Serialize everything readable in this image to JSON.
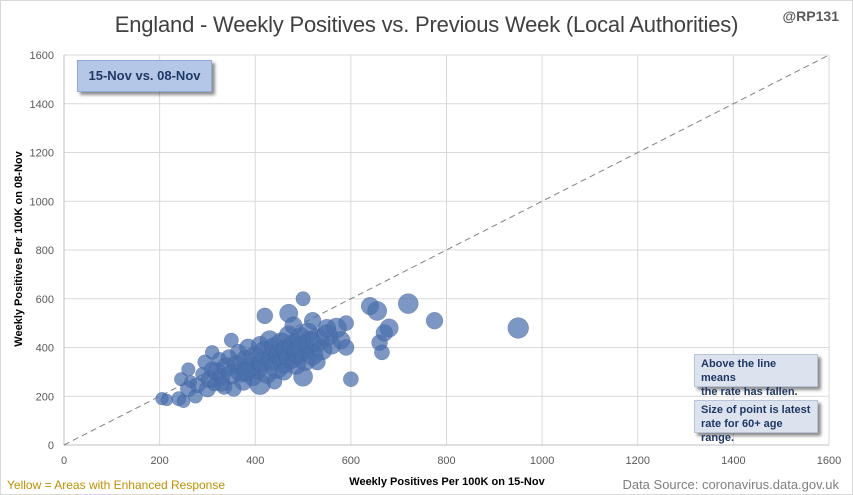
{
  "header": {
    "title": "England - Weekly Positives vs. Previous Week (Local Authorities)",
    "handle": "@RP131"
  },
  "annotations": {
    "period": "15-Nov vs. 08-Nov",
    "note_line_1": "Above the line means",
    "note_line_2": "the rate has fallen.",
    "note_size_1": "Size of point is latest",
    "note_size_2": "rate for 60+ age range."
  },
  "footer": {
    "legend_note": "Yellow = Areas with Enhanced Response",
    "source": "Data Source: coronavirus.data.gov.uk"
  },
  "colors": {
    "points": "#4a6fac",
    "reference_line": "#808080",
    "grid": "#d9d9d9"
  },
  "chart_data": {
    "type": "scatter",
    "title": "England - Weekly Positives vs. Previous Week (Local Authorities)",
    "xlabel": "Weekly Positives Per 100K on 15-Nov",
    "ylabel": "Weekly Positives Per 100K on 08-Nov",
    "xlim": [
      0,
      1600
    ],
    "ylim": [
      0,
      1600
    ],
    "xticks": [
      0,
      200,
      400,
      600,
      800,
      1000,
      1200,
      1400,
      1600
    ],
    "yticks": [
      0,
      200,
      400,
      600,
      800,
      1000,
      1200,
      1400,
      1600
    ],
    "grid": true,
    "reference_line": "y = x",
    "points": [
      {
        "x": 205,
        "y": 190,
        "s": 120
      },
      {
        "x": 215,
        "y": 185,
        "s": 100
      },
      {
        "x": 240,
        "y": 190,
        "s": 160
      },
      {
        "x": 245,
        "y": 270,
        "s": 140
      },
      {
        "x": 250,
        "y": 180,
        "s": 130
      },
      {
        "x": 260,
        "y": 230,
        "s": 200
      },
      {
        "x": 265,
        "y": 260,
        "s": 110
      },
      {
        "x": 275,
        "y": 200,
        "s": 150
      },
      {
        "x": 280,
        "y": 245,
        "s": 180
      },
      {
        "x": 290,
        "y": 290,
        "s": 160
      },
      {
        "x": 295,
        "y": 340,
        "s": 170
      },
      {
        "x": 300,
        "y": 230,
        "s": 210
      },
      {
        "x": 305,
        "y": 270,
        "s": 240
      },
      {
        "x": 310,
        "y": 310,
        "s": 190
      },
      {
        "x": 315,
        "y": 250,
        "s": 150
      },
      {
        "x": 320,
        "y": 300,
        "s": 260
      },
      {
        "x": 325,
        "y": 350,
        "s": 170
      },
      {
        "x": 330,
        "y": 280,
        "s": 220
      },
      {
        "x": 335,
        "y": 240,
        "s": 200
      },
      {
        "x": 340,
        "y": 320,
        "s": 280
      },
      {
        "x": 345,
        "y": 360,
        "s": 190
      },
      {
        "x": 350,
        "y": 290,
        "s": 300
      },
      {
        "x": 355,
        "y": 230,
        "s": 180
      },
      {
        "x": 360,
        "y": 330,
        "s": 260
      },
      {
        "x": 365,
        "y": 380,
        "s": 210
      },
      {
        "x": 370,
        "y": 300,
        "s": 320
      },
      {
        "x": 375,
        "y": 260,
        "s": 240
      },
      {
        "x": 380,
        "y": 350,
        "s": 280
      },
      {
        "x": 385,
        "y": 400,
        "s": 230
      },
      {
        "x": 390,
        "y": 320,
        "s": 300
      },
      {
        "x": 395,
        "y": 280,
        "s": 260
      },
      {
        "x": 400,
        "y": 360,
        "s": 340
      },
      {
        "x": 405,
        "y": 310,
        "s": 280
      },
      {
        "x": 410,
        "y": 410,
        "s": 240
      },
      {
        "x": 410,
        "y": 250,
        "s": 330
      },
      {
        "x": 415,
        "y": 340,
        "s": 300
      },
      {
        "x": 420,
        "y": 380,
        "s": 360
      },
      {
        "x": 425,
        "y": 290,
        "s": 260
      },
      {
        "x": 430,
        "y": 430,
        "s": 280
      },
      {
        "x": 435,
        "y": 350,
        "s": 320
      },
      {
        "x": 440,
        "y": 400,
        "s": 300
      },
      {
        "x": 445,
        "y": 320,
        "s": 380
      },
      {
        "x": 450,
        "y": 370,
        "s": 340
      },
      {
        "x": 455,
        "y": 420,
        "s": 300
      },
      {
        "x": 460,
        "y": 340,
        "s": 360
      },
      {
        "x": 465,
        "y": 390,
        "s": 320
      },
      {
        "x": 470,
        "y": 450,
        "s": 280
      },
      {
        "x": 475,
        "y": 360,
        "s": 380
      },
      {
        "x": 480,
        "y": 410,
        "s": 340
      },
      {
        "x": 485,
        "y": 330,
        "s": 300
      },
      {
        "x": 490,
        "y": 380,
        "s": 360
      },
      {
        "x": 495,
        "y": 440,
        "s": 320
      },
      {
        "x": 500,
        "y": 280,
        "s": 280
      },
      {
        "x": 500,
        "y": 400,
        "s": 400
      },
      {
        "x": 505,
        "y": 350,
        "s": 340
      },
      {
        "x": 510,
        "y": 460,
        "s": 300
      },
      {
        "x": 515,
        "y": 420,
        "s": 360
      },
      {
        "x": 520,
        "y": 370,
        "s": 320
      },
      {
        "x": 530,
        "y": 430,
        "s": 380
      },
      {
        "x": 540,
        "y": 390,
        "s": 300
      },
      {
        "x": 550,
        "y": 450,
        "s": 340
      },
      {
        "x": 560,
        "y": 410,
        "s": 260
      },
      {
        "x": 570,
        "y": 480,
        "s": 300
      },
      {
        "x": 580,
        "y": 430,
        "s": 240
      },
      {
        "x": 590,
        "y": 400,
        "s": 200
      },
      {
        "x": 600,
        "y": 270,
        "s": 180
      },
      {
        "x": 420,
        "y": 530,
        "s": 200
      },
      {
        "x": 470,
        "y": 540,
        "s": 260
      },
      {
        "x": 500,
        "y": 600,
        "s": 160
      },
      {
        "x": 520,
        "y": 510,
        "s": 220
      },
      {
        "x": 550,
        "y": 480,
        "s": 240
      },
      {
        "x": 590,
        "y": 500,
        "s": 180
      },
      {
        "x": 640,
        "y": 570,
        "s": 240
      },
      {
        "x": 655,
        "y": 550,
        "s": 280
      },
      {
        "x": 660,
        "y": 420,
        "s": 200
      },
      {
        "x": 665,
        "y": 380,
        "s": 180
      },
      {
        "x": 670,
        "y": 460,
        "s": 220
      },
      {
        "x": 680,
        "y": 480,
        "s": 260
      },
      {
        "x": 720,
        "y": 580,
        "s": 300
      },
      {
        "x": 775,
        "y": 510,
        "s": 220
      },
      {
        "x": 950,
        "y": 480,
        "s": 320
      },
      {
        "x": 350,
        "y": 430,
        "s": 160
      },
      {
        "x": 310,
        "y": 380,
        "s": 150
      },
      {
        "x": 260,
        "y": 310,
        "s": 140
      },
      {
        "x": 440,
        "y": 260,
        "s": 180
      },
      {
        "x": 480,
        "y": 490,
        "s": 240
      },
      {
        "x": 530,
        "y": 340,
        "s": 200
      },
      {
        "x": 460,
        "y": 300,
        "s": 220
      },
      {
        "x": 380,
        "y": 300,
        "s": 260
      },
      {
        "x": 330,
        "y": 250,
        "s": 170
      }
    ]
  }
}
